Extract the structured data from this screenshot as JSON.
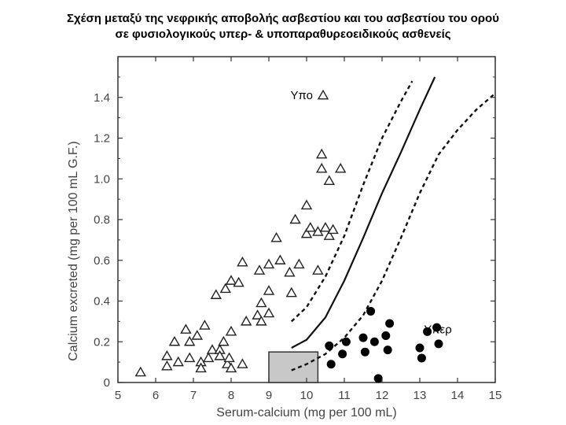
{
  "title_line1": "Σχέση μεταξύ της νεφρικής αποβολής ασβεστίου και του ασβεστίου του ορού",
  "title_line2": "σε φυσιολογικούς υπερ- & υποπαραθυρεοειδικούς ασθενείς",
  "chart_data": {
    "type": "scatter",
    "xlabel": "Serum-calcium (mg per 100 mL)",
    "ylabel": "Calcium excreted (mg per 100 mL G.F.)",
    "xlim": [
      5,
      15
    ],
    "ylim": [
      0,
      1.6
    ],
    "xticks": [
      5,
      6,
      7,
      8,
      9,
      10,
      11,
      12,
      13,
      14,
      15
    ],
    "yticks": [
      0,
      0.2,
      0.4,
      0.6,
      0.8,
      1.0,
      1.2,
      1.4
    ],
    "ytick_labels": [
      "0",
      "0.2",
      "0.4",
      "0.6",
      "0.8",
      "1.0",
      "1.2",
      "1.4"
    ],
    "normal_range_box": {
      "x": [
        9.0,
        10.3
      ],
      "y": [
        0,
        0.15
      ]
    },
    "series": [
      {
        "name": "Υπο",
        "marker": "triangle",
        "points": [
          [
            5.6,
            0.05
          ],
          [
            6.3,
            0.08
          ],
          [
            6.3,
            0.13
          ],
          [
            6.5,
            0.2
          ],
          [
            6.6,
            0.1
          ],
          [
            6.8,
            0.26
          ],
          [
            6.9,
            0.2
          ],
          [
            6.9,
            0.12
          ],
          [
            7.1,
            0.23
          ],
          [
            7.2,
            0.1
          ],
          [
            7.2,
            0.07
          ],
          [
            7.3,
            0.28
          ],
          [
            7.4,
            0.12
          ],
          [
            7.5,
            0.16
          ],
          [
            7.6,
            0.43
          ],
          [
            7.7,
            0.16
          ],
          [
            7.7,
            0.13
          ],
          [
            7.8,
            0.2
          ],
          [
            7.85,
            0.46
          ],
          [
            7.9,
            0.09
          ],
          [
            7.95,
            0.12
          ],
          [
            8.0,
            0.25
          ],
          [
            8.0,
            0.07
          ],
          [
            8.0,
            0.5
          ],
          [
            8.2,
            0.49
          ],
          [
            8.3,
            0.09
          ],
          [
            8.3,
            0.59
          ],
          [
            8.4,
            0.3
          ],
          [
            8.7,
            0.33
          ],
          [
            8.75,
            0.55
          ],
          [
            8.8,
            0.39
          ],
          [
            8.8,
            0.3
          ],
          [
            9.0,
            0.58
          ],
          [
            9.0,
            0.45
          ],
          [
            9.0,
            0.34
          ],
          [
            9.2,
            0.71
          ],
          [
            9.3,
            0.6
          ],
          [
            9.55,
            0.54
          ],
          [
            9.6,
            0.44
          ],
          [
            9.7,
            0.8
          ],
          [
            9.8,
            0.58
          ],
          [
            10.0,
            0.87
          ],
          [
            10.0,
            0.73
          ],
          [
            10.1,
            0.76
          ],
          [
            10.3,
            0.74
          ],
          [
            10.3,
            0.55
          ],
          [
            10.4,
            1.12
          ],
          [
            10.4,
            1.05
          ],
          [
            10.5,
            0.76
          ],
          [
            10.6,
            0.72
          ],
          [
            10.6,
            0.99
          ],
          [
            10.7,
            0.75
          ],
          [
            10.9,
            1.05
          ]
        ]
      },
      {
        "name": "Υπερ",
        "marker": "circle",
        "points": [
          [
            10.6,
            0.18
          ],
          [
            10.65,
            0.09
          ],
          [
            10.95,
            0.14
          ],
          [
            11.05,
            0.2
          ],
          [
            11.5,
            0.22
          ],
          [
            11.55,
            0.15
          ],
          [
            11.7,
            0.35
          ],
          [
            11.8,
            0.2
          ],
          [
            11.9,
            0.02
          ],
          [
            12.1,
            0.23
          ],
          [
            12.15,
            0.16
          ],
          [
            12.2,
            0.29
          ],
          [
            13.0,
            0.17
          ],
          [
            13.05,
            0.12
          ],
          [
            13.2,
            0.25
          ],
          [
            13.45,
            0.27
          ],
          [
            13.5,
            0.19
          ]
        ]
      }
    ],
    "curves": [
      {
        "name": "upper-dashed",
        "style": "dashed",
        "points": [
          [
            9.6,
            0.3
          ],
          [
            10.0,
            0.37
          ],
          [
            10.5,
            0.52
          ],
          [
            11.0,
            0.72
          ],
          [
            11.5,
            0.97
          ],
          [
            12.0,
            1.2
          ],
          [
            12.5,
            1.38
          ],
          [
            12.8,
            1.48
          ]
        ]
      },
      {
        "name": "center-solid",
        "style": "solid",
        "points": [
          [
            9.6,
            0.17
          ],
          [
            10.0,
            0.21
          ],
          [
            10.5,
            0.32
          ],
          [
            11.0,
            0.5
          ],
          [
            11.5,
            0.71
          ],
          [
            12.0,
            0.93
          ],
          [
            12.5,
            1.13
          ],
          [
            13.0,
            1.34
          ],
          [
            13.4,
            1.5
          ]
        ]
      },
      {
        "name": "lower-dashed",
        "style": "dashed",
        "points": [
          [
            9.6,
            0.06
          ],
          [
            10.0,
            0.09
          ],
          [
            10.5,
            0.14
          ],
          [
            11.0,
            0.22
          ],
          [
            11.5,
            0.33
          ],
          [
            12.0,
            0.5
          ],
          [
            12.5,
            0.71
          ],
          [
            13.0,
            0.93
          ],
          [
            13.5,
            1.12
          ],
          [
            14.0,
            1.24
          ],
          [
            14.5,
            1.34
          ],
          [
            15.0,
            1.42
          ]
        ]
      }
    ],
    "annotations": [
      {
        "text": "Υπο",
        "x": 10.25,
        "y": 1.41,
        "marker": "triangle"
      },
      {
        "text": "Υπερ",
        "x": 13.9,
        "y": 0.26,
        "marker": "none"
      }
    ]
  }
}
